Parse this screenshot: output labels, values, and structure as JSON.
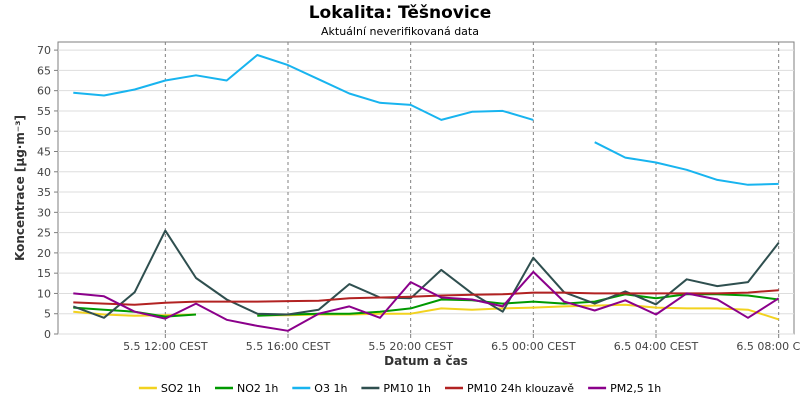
{
  "chart_data": {
    "type": "line",
    "title": "Lokalita: Těšnovice",
    "subtitle": "Aktuální neverifikovaná data",
    "xlabel": "Datum a čas",
    "ylabel": "Koncentrace [µg·m⁻³]",
    "ylim": [
      0,
      72
    ],
    "yticks": [
      0,
      5,
      10,
      15,
      20,
      25,
      30,
      35,
      40,
      45,
      50,
      55,
      60,
      65,
      70
    ],
    "x": [
      "5.5 09:00",
      "5.5 10:00",
      "5.5 11:00",
      "5.5 12:00",
      "5.5 13:00",
      "5.5 14:00",
      "5.5 15:00",
      "5.5 16:00",
      "5.5 17:00",
      "5.5 18:00",
      "5.5 19:00",
      "5.5 20:00",
      "5.5 21:00",
      "5.5 22:00",
      "5.5 23:00",
      "6.5 00:00",
      "6.5 01:00",
      "6.5 02:00",
      "6.5 03:00",
      "6.5 04:00",
      "6.5 05:00",
      "6.5 06:00",
      "6.5 07:00",
      "6.5 08:00"
    ],
    "xlim": [
      "5.5 08:30",
      "6.5 08:30"
    ],
    "xticks": [
      {
        "at": "5.5 12:00",
        "label": "5.5 12:00 CEST"
      },
      {
        "at": "5.5 16:00",
        "label": "5.5 16:00 CEST"
      },
      {
        "at": "5.5 20:00",
        "label": "5.5 20:00 CEST"
      },
      {
        "at": "6.5 00:00",
        "label": "6.5 00:00 CEST"
      },
      {
        "at": "6.5 04:00",
        "label": "6.5 04:00 CEST"
      },
      {
        "at": "6.5 08:00",
        "label": "6.5 08:00 CEST"
      }
    ],
    "grid": true,
    "legend_position": "bottom",
    "series": [
      {
        "name": "SO2 1h",
        "color": "#f2d21f",
        "values": [
          5.5,
          4.8,
          4.5,
          4.6,
          4.8,
          null,
          4.6,
          4.6,
          4.8,
          4.8,
          5.0,
          5.0,
          6.3,
          6.0,
          6.3,
          6.5,
          6.8,
          7.0,
          7.2,
          6.5,
          6.3,
          6.3,
          6.0,
          3.6
        ]
      },
      {
        "name": "NO2 1h",
        "color": "#009900",
        "values": [
          6.5,
          6.0,
          5.5,
          4.3,
          4.8,
          null,
          4.5,
          4.8,
          5.0,
          5.0,
          5.5,
          6.3,
          8.5,
          8.3,
          7.5,
          8.0,
          7.5,
          8.0,
          9.8,
          8.8,
          9.8,
          9.8,
          9.5,
          8.5
        ]
      },
      {
        "name": "O3 1h",
        "color": "#18b4ef",
        "values": [
          59.5,
          58.8,
          60.3,
          62.5,
          63.8,
          62.5,
          68.8,
          66.3,
          62.8,
          59.3,
          57.0,
          56.5,
          52.8,
          54.8,
          55.0,
          52.8,
          null,
          47.3,
          43.5,
          42.3,
          40.5,
          38.0,
          36.8,
          37.0
        ]
      },
      {
        "name": "PM10 1h",
        "color": "#2f4f4f",
        "values": [
          6.8,
          4.0,
          10.3,
          25.5,
          13.8,
          8.5,
          5.0,
          4.8,
          6.0,
          12.3,
          9.0,
          8.8,
          15.8,
          10.0,
          5.5,
          18.8,
          10.3,
          7.5,
          10.5,
          7.3,
          13.5,
          11.8,
          12.8,
          22.5
        ]
      },
      {
        "name": "PM10 24h klouzavě",
        "color": "#b22222",
        "values": [
          7.8,
          7.5,
          7.2,
          7.7,
          8.0,
          8.0,
          8.0,
          8.1,
          8.2,
          8.8,
          9.0,
          9.2,
          9.5,
          9.7,
          9.8,
          10.2,
          10.2,
          10.0,
          10.0,
          10.0,
          10.0,
          10.0,
          10.2,
          10.8
        ]
      },
      {
        "name": "PM2,5 1h",
        "color": "#8b008b",
        "values": [
          10.0,
          9.3,
          5.5,
          3.8,
          7.5,
          3.5,
          2.0,
          0.8,
          5.0,
          6.8,
          4.0,
          12.8,
          9.0,
          8.5,
          6.8,
          15.3,
          8.0,
          5.8,
          8.3,
          4.8,
          10.0,
          8.5,
          4.0,
          8.8
        ]
      }
    ]
  }
}
